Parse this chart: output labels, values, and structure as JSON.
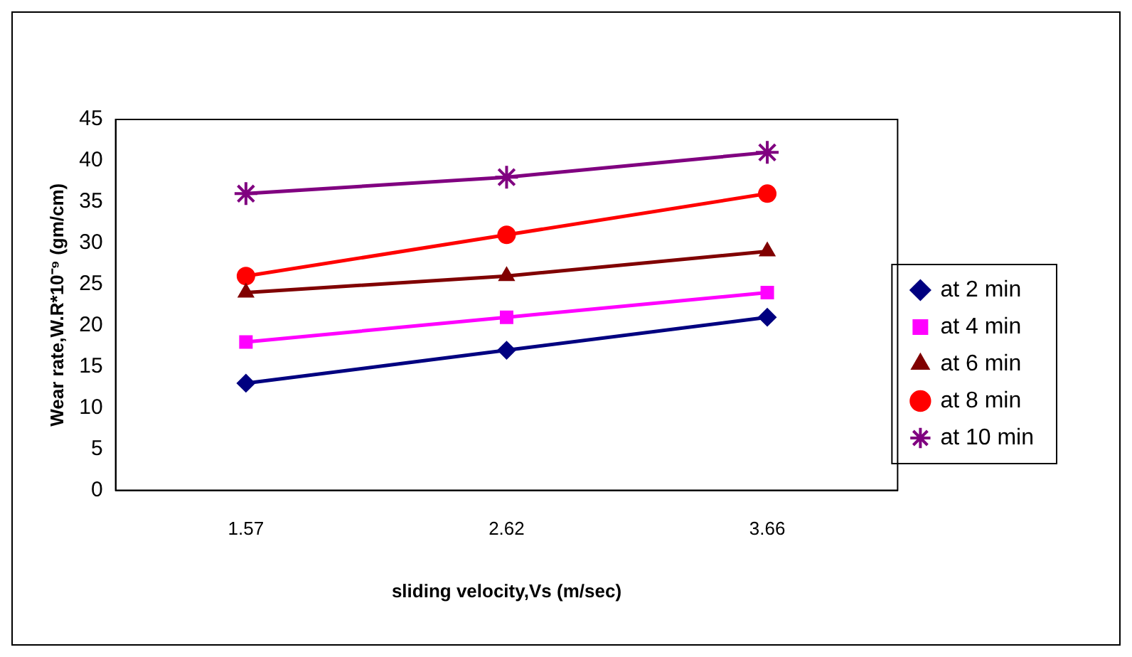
{
  "chart_data": {
    "type": "line",
    "xlabel": "sliding velocity,Vs (m/sec)",
    "ylabel": "Wear rate,W.R*10⁻⁹ (gm/cm)",
    "categories": [
      "1.57",
      "2.62",
      "3.66"
    ],
    "ylim": [
      0,
      45
    ],
    "yticks": [
      0,
      5,
      10,
      15,
      20,
      25,
      30,
      35,
      40,
      45
    ],
    "grid": false,
    "legend": "right",
    "series": [
      {
        "name": "at 2 min",
        "color": "#000080",
        "marker": "diamond",
        "values": [
          13,
          17,
          21
        ]
      },
      {
        "name": "at 4 min",
        "color": "#ff00ff",
        "marker": "square",
        "values": [
          18,
          21,
          24
        ]
      },
      {
        "name": "at 6 min",
        "color": "#800000",
        "marker": "triangle",
        "values": [
          24,
          26,
          29
        ]
      },
      {
        "name": "at 8 min",
        "color": "#ff0000",
        "marker": "circle",
        "values": [
          26,
          31,
          36
        ]
      },
      {
        "name": "at 10 min",
        "color": "#800080",
        "marker": "cross",
        "values": [
          36,
          38,
          41
        ]
      }
    ]
  }
}
